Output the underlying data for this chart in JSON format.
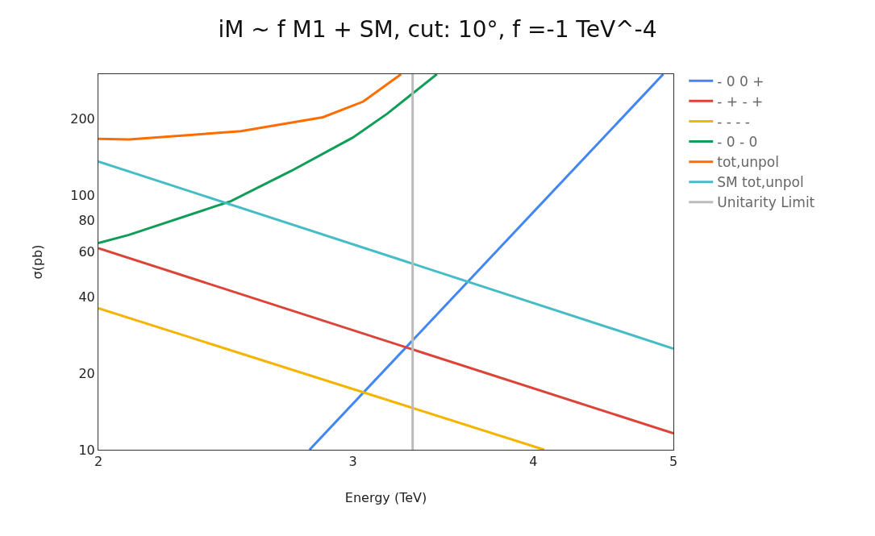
{
  "chart_data": {
    "type": "line",
    "title": "iM ~ f M1 + SM, cut: 10°, f =-1 TeV^-4",
    "xlabel": "Energy (TeV)",
    "ylabel": "σ(pb)",
    "log": "xy",
    "grid": false,
    "legend": "right",
    "marker": "none",
    "line_style": "solid",
    "xlim": [
      2,
      5
    ],
    "xticks": [
      2,
      3,
      4,
      5
    ],
    "ylim": [
      10,
      300
    ],
    "yticks": [
      10,
      20,
      40,
      60,
      80,
      100,
      200
    ],
    "series": [
      {
        "name": "- 0 0 +",
        "color": "#4285f4",
        "x": [
          2.8,
          4.92
        ],
        "values": [
          10,
          300
        ]
      },
      {
        "name": "- + - +",
        "color": "#db4437",
        "x": [
          2,
          5
        ],
        "values": [
          62,
          11.6
        ]
      },
      {
        "name": "- - - -",
        "color": "#f4b400",
        "x": [
          2,
          4.07
        ],
        "values": [
          36,
          10
        ]
      },
      {
        "name": "- 0 - 0",
        "color": "#0f9d58",
        "x": [
          2,
          2.1,
          2.47,
          2.72,
          3,
          3.17,
          3.43
        ],
        "values": [
          65,
          70,
          95,
          125,
          169,
          210,
          300
        ]
      },
      {
        "name": "tot,unpol",
        "color": "#ff6d00",
        "x": [
          2,
          2.1,
          2.51,
          2.86,
          3.05,
          3.24
        ],
        "values": [
          167,
          166,
          179,
          203,
          234,
          300
        ]
      },
      {
        "name": "SM tot,unpol",
        "color": "#46bdc6",
        "x": [
          2,
          5
        ],
        "values": [
          136,
          25
        ]
      },
      {
        "name": "Unitarity Limit",
        "color": "#bbbbbb",
        "x": [
          3.3,
          3.3
        ],
        "values": [
          10,
          300
        ]
      }
    ]
  }
}
